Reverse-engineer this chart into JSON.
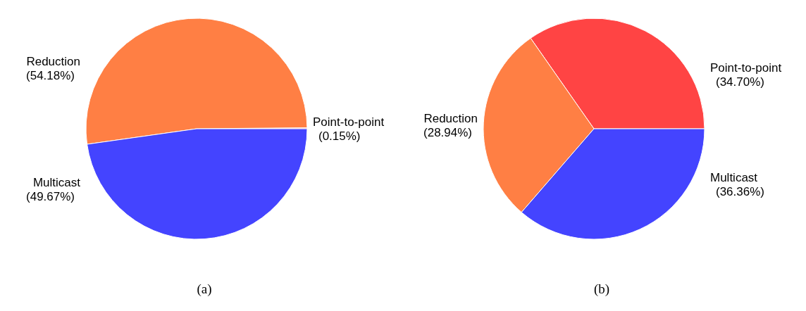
{
  "chart_data": [
    {
      "type": "pie",
      "title": "(a)",
      "categories": [
        "Point-to-point",
        "Reduction",
        "Multicast"
      ],
      "values": [
        0.15,
        54.18,
        49.67
      ],
      "value_labels": [
        "(0.15%)",
        "(54.18%)",
        "(49.67%)"
      ],
      "colors": [
        "#ff4444",
        "#ff7f44",
        "#4444ff"
      ]
    },
    {
      "type": "pie",
      "title": "(b)",
      "categories": [
        "Point-to-point",
        "Reduction",
        "Multicast"
      ],
      "values": [
        34.7,
        28.94,
        36.36
      ],
      "value_labels": [
        "(34.70%)",
        "(28.94%)",
        "(36.36%)"
      ],
      "colors": [
        "#ff4444",
        "#ff7f44",
        "#4444ff"
      ]
    }
  ]
}
